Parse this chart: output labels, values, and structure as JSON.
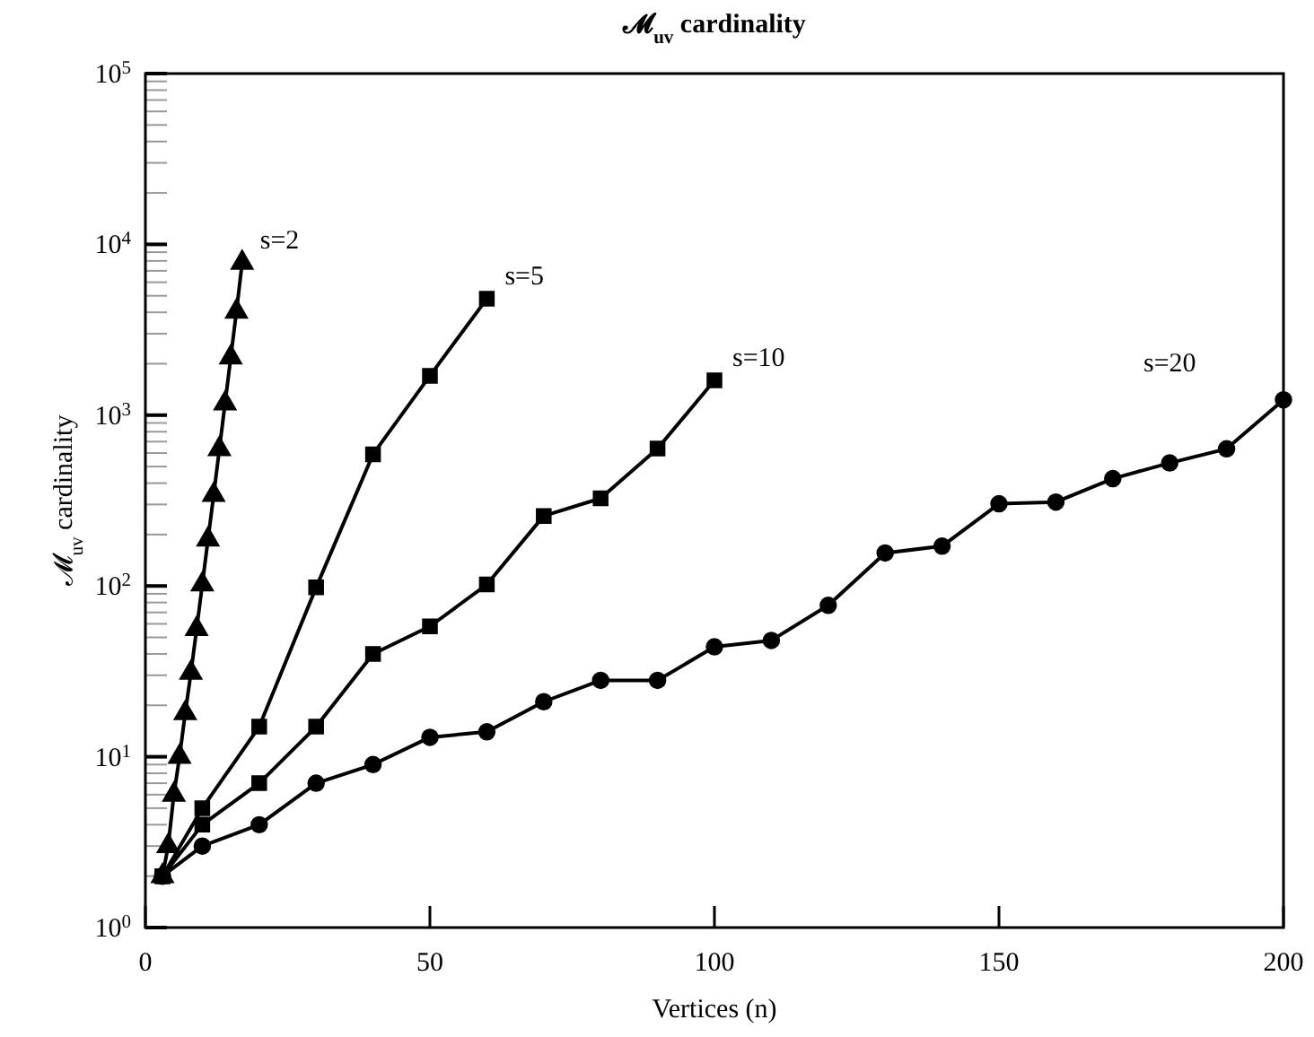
{
  "chart_data": {
    "type": "line",
    "title": "𝓜$_{uv}$ cardinality",
    "xlabel": "Vertices (n)",
    "ylabel": "𝓜$_{uv}$ cardinality",
    "log": "y",
    "grid": false,
    "legend": false,
    "line_style": "solid",
    "xlim": [
      0,
      200
    ],
    "xticks": [
      0,
      50,
      100,
      150,
      200
    ],
    "ylim": [
      1,
      100000
    ],
    "yticks": [
      {
        "value": 1,
        "label": "10$^{0}$"
      },
      {
        "value": 10,
        "label": "10$^{1}$"
      },
      {
        "value": 100,
        "label": "10$^{2}$"
      },
      {
        "value": 1000,
        "label": "10$^{3}$"
      },
      {
        "value": 10000,
        "label": "10$^{4}$"
      },
      {
        "value": 100000,
        "label": "10$^{5}$"
      }
    ],
    "series": [
      {
        "name": "s=2",
        "color": "#000000",
        "marker": "triangle",
        "x": [
          3,
          4,
          5,
          6,
          7,
          8,
          9,
          10,
          11,
          12,
          13,
          14,
          15,
          16,
          17
        ],
        "values": [
          2,
          3,
          6,
          10,
          18,
          31,
          56,
          102,
          187,
          341,
          633,
          1170,
          2180,
          4040,
          7800
        ]
      },
      {
        "name": "s=5",
        "color": "#000000",
        "marker": "square",
        "x": [
          3,
          10,
          20,
          30,
          40,
          50,
          60
        ],
        "values": [
          2,
          5,
          15,
          98,
          590,
          1700,
          4800
        ]
      },
      {
        "name": "s=10",
        "color": "#000000",
        "marker": "square",
        "x": [
          3,
          10,
          20,
          30,
          40,
          50,
          60,
          70,
          80,
          90,
          100
        ],
        "values": [
          2,
          4,
          7,
          15,
          40,
          58,
          102,
          257,
          326,
          637,
          1600
        ]
      },
      {
        "name": "s=20",
        "color": "#000000",
        "marker": "circle",
        "x": [
          3,
          10,
          20,
          30,
          40,
          50,
          60,
          70,
          80,
          90,
          100,
          110,
          120,
          130,
          140,
          150,
          160,
          170,
          180,
          190,
          200
        ],
        "values": [
          2,
          3,
          4,
          7,
          9,
          13,
          14,
          21,
          28,
          28,
          44,
          48,
          77,
          156,
          171,
          303,
          310,
          425,
          525,
          635,
          1230
        ]
      }
    ]
  }
}
